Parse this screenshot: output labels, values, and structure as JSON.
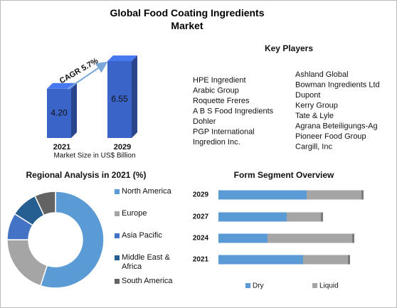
{
  "title": "Global Food Coating Ingredients Market",
  "chart_data": [
    {
      "type": "bar3d",
      "categories": [
        "2021",
        "2029"
      ],
      "values": [
        4.2,
        6.55
      ],
      "value_labels": [
        "4.20",
        "6.55"
      ],
      "color": "#3b64c8",
      "annotation": "CAGR 5.7%",
      "x_label": "Market Size in US$ Billion"
    },
    {
      "type": "donut",
      "title": "Regional Analysis in 2021 (%)",
      "categories": [
        "North America",
        "Europe",
        "Asia Pacific",
        "Middle East & Africa",
        "South America"
      ],
      "values": [
        55,
        20,
        9,
        9,
        7
      ],
      "colors": [
        "#5b9bd5",
        "#a5a5a5",
        "#4472c4",
        "#255e91",
        "#636363"
      ]
    },
    {
      "type": "stacked-hbar",
      "title": "Form Segment Overview",
      "categories": [
        "2029",
        "2027",
        "2024",
        "2021"
      ],
      "series": [
        {
          "name": "Dry",
          "color": "#5b9bd5",
          "values": [
            124,
            96,
            69,
            119
          ]
        },
        {
          "name": "Liquid",
          "color": "#a5a5a5",
          "values": [
            80,
            51,
            122,
            66
          ]
        }
      ]
    }
  ],
  "key_players": {
    "title": "Key Players",
    "column1": [
      "HPE Ingredient",
      "Arabic Group",
      "Roquette Freres",
      "A B S Food Ingredients",
      "Dohler",
      "PGP International",
      "Ingredion Inc."
    ],
    "column2": [
      "Ashland Global",
      "Bowman Ingredients Ltd",
      "Dupont",
      "Kerry Group",
      "Tate & Lyle",
      "Agrana Beteiligungs-Ag",
      "Pioneer Food Group",
      "Cargill, Inc"
    ]
  }
}
